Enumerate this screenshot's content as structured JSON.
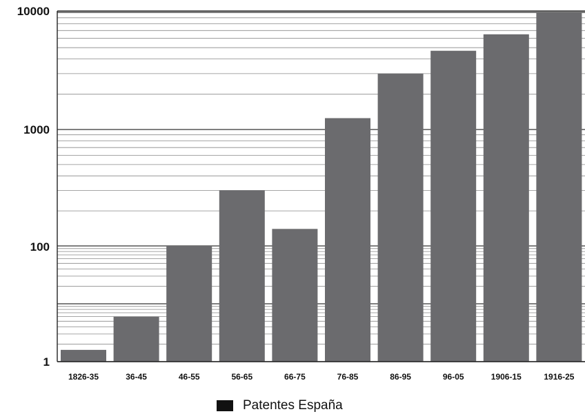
{
  "chart_data": {
    "type": "bar",
    "log_scale": true,
    "categories": [
      "1826-35",
      "36-45",
      "46-55",
      "56-65",
      "66-75",
      "76-85",
      "86-95",
      "96-05",
      "1906-15",
      "1916-25"
    ],
    "series": [
      {
        "name": "Patentes España",
        "values": [
          1.6,
          6,
          100,
          300,
          140,
          1250,
          3000,
          4700,
          6500,
          10000
        ]
      }
    ],
    "y_tick_labels": [
      "10000",
      "1000",
      "100",
      "1"
    ],
    "ylim": [
      1,
      100000
    ],
    "grid": true,
    "legend": "bottom-center",
    "colors": {
      "bar": "#6b6b6e",
      "grid": "#888888",
      "axis": "#222222"
    }
  }
}
